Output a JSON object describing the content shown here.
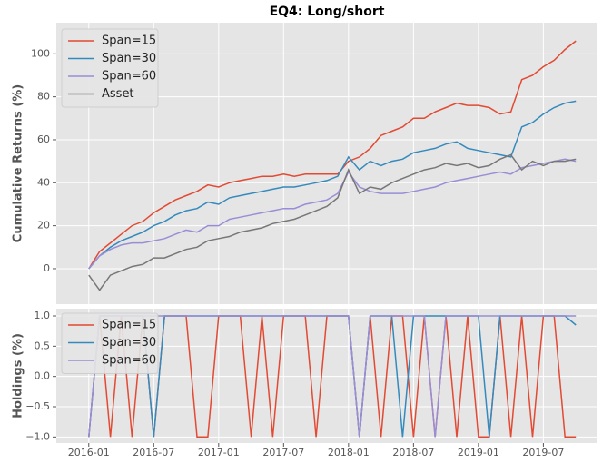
{
  "chart_data": [
    {
      "type": "line",
      "title": "EQ4: Long/short",
      "ylabel": "Cumulative Returns (%)",
      "x": [
        "2016-01",
        "2016-02",
        "2016-03",
        "2016-04",
        "2016-05",
        "2016-06",
        "2016-07",
        "2016-08",
        "2016-09",
        "2016-10",
        "2016-11",
        "2016-12",
        "2017-01",
        "2017-02",
        "2017-03",
        "2017-04",
        "2017-05",
        "2017-06",
        "2017-07",
        "2017-08",
        "2017-09",
        "2017-10",
        "2017-11",
        "2017-12",
        "2018-01",
        "2018-02",
        "2018-03",
        "2018-04",
        "2018-05",
        "2018-06",
        "2018-07",
        "2018-08",
        "2018-09",
        "2018-10",
        "2018-11",
        "2018-12",
        "2019-01",
        "2019-02",
        "2019-03",
        "2019-04",
        "2019-05",
        "2019-06",
        "2019-07",
        "2019-08",
        "2019-09",
        "2019-10"
      ],
      "xlim": [
        "2015-10",
        "2019-12"
      ],
      "ylim": [
        -16.5,
        114.5
      ],
      "yticks": [
        0,
        20,
        40,
        60,
        80,
        100
      ],
      "grid": true,
      "legend": "upper left",
      "series": [
        {
          "name": "Span=15",
          "color": "#E24A33",
          "values": [
            0,
            8,
            12,
            16,
            20,
            22,
            26,
            29,
            32,
            34,
            36,
            39,
            38,
            40,
            41,
            42,
            43,
            43,
            44,
            43,
            44,
            44,
            44,
            44,
            50,
            52,
            56,
            62,
            64,
            66,
            70,
            70,
            73,
            75,
            77,
            76,
            76,
            75,
            72,
            73,
            88,
            90,
            94,
            97,
            102,
            106
          ]
        },
        {
          "name": "Span=30",
          "color": "#348ABD",
          "values": [
            0,
            6,
            10,
            13,
            15,
            17,
            20,
            22,
            25,
            27,
            28,
            31,
            30,
            33,
            34,
            35,
            36,
            37,
            38,
            38,
            39,
            40,
            41,
            43,
            52,
            46,
            50,
            48,
            50,
            51,
            54,
            55,
            56,
            58,
            59,
            56,
            55,
            54,
            53,
            52,
            66,
            68,
            72,
            75,
            77,
            78
          ]
        },
        {
          "name": "Span=60",
          "color": "#988ED5",
          "values": [
            0,
            6,
            9,
            11,
            12,
            12,
            13,
            14,
            16,
            18,
            17,
            20,
            20,
            23,
            24,
            25,
            26,
            27,
            28,
            28,
            30,
            31,
            32,
            35,
            45,
            38,
            36,
            35,
            35,
            35,
            36,
            37,
            38,
            40,
            41,
            42,
            43,
            44,
            45,
            44,
            47,
            48,
            49,
            50,
            51,
            50
          ]
        },
        {
          "name": "Asset",
          "color": "#777777",
          "values": [
            -3,
            -10,
            -3,
            -1,
            1,
            2,
            5,
            5,
            7,
            9,
            10,
            13,
            14,
            15,
            17,
            18,
            19,
            21,
            22,
            23,
            25,
            27,
            29,
            33,
            46,
            35,
            38,
            37,
            40,
            42,
            44,
            46,
            47,
            49,
            48,
            49,
            47,
            48,
            51,
            53,
            46,
            50,
            48,
            50,
            50,
            51
          ]
        }
      ]
    },
    {
      "type": "line",
      "ylabel": "Holdings (%)",
      "x": [
        "2016-01",
        "2016-02",
        "2016-03",
        "2016-04",
        "2016-05",
        "2016-06",
        "2016-07",
        "2016-08",
        "2016-09",
        "2016-10",
        "2016-11",
        "2016-12",
        "2017-01",
        "2017-02",
        "2017-03",
        "2017-04",
        "2017-05",
        "2017-06",
        "2017-07",
        "2017-08",
        "2017-09",
        "2017-10",
        "2017-11",
        "2017-12",
        "2018-01",
        "2018-02",
        "2018-03",
        "2018-04",
        "2018-05",
        "2018-06",
        "2018-07",
        "2018-08",
        "2018-09",
        "2018-10",
        "2018-11",
        "2018-12",
        "2019-01",
        "2019-02",
        "2019-03",
        "2019-04",
        "2019-05",
        "2019-06",
        "2019-07",
        "2019-08",
        "2019-09",
        "2019-10"
      ],
      "xlim": [
        "2015-10",
        "2019-12"
      ],
      "xticks": [
        "2016-01",
        "2016-07",
        "2017-01",
        "2017-07",
        "2018-01",
        "2018-07",
        "2019-01",
        "2019-07"
      ],
      "ylim": [
        -1.1,
        1.12
      ],
      "yticks": [
        {
          "value": -1,
          "label": "−1.0"
        },
        {
          "value": -0.5,
          "label": "−0.5"
        },
        {
          "value": 0,
          "label": "0.0"
        },
        {
          "value": 0.5,
          "label": "0.5"
        },
        {
          "value": 1,
          "label": "1.0"
        }
      ],
      "grid": true,
      "legend": "upper left",
      "series": [
        {
          "name": "Span=15",
          "color": "#E24A33",
          "values": [
            -1,
            1,
            -1,
            1,
            -1,
            1,
            -1,
            1,
            1,
            1,
            -1,
            -1,
            1,
            1,
            1,
            -1,
            1,
            -1,
            1,
            1,
            1,
            -1,
            1,
            1,
            1,
            -1,
            1,
            -1,
            1,
            1,
            -1,
            1,
            -1,
            1,
            -1,
            1,
            -1,
            -1,
            1,
            -1,
            1,
            -1,
            1,
            1,
            -1,
            -1
          ]
        },
        {
          "name": "Span=30",
          "color": "#348ABD",
          "values": [
            -1,
            1,
            1,
            1,
            1,
            1,
            -1,
            1,
            1,
            1,
            1,
            1,
            1,
            1,
            1,
            1,
            1,
            1,
            1,
            1,
            1,
            1,
            1,
            1,
            1,
            -1,
            1,
            1,
            1,
            -1,
            1,
            1,
            1,
            1,
            1,
            1,
            1,
            -1,
            1,
            1,
            1,
            1,
            1,
            1,
            1,
            0.85
          ]
        },
        {
          "name": "Span=60",
          "color": "#988ED5",
          "values": [
            -1,
            1,
            1,
            1,
            1,
            1,
            1,
            1,
            1,
            1,
            1,
            1,
            1,
            1,
            1,
            1,
            1,
            1,
            1,
            1,
            1,
            1,
            1,
            1,
            1,
            -1,
            1,
            1,
            1,
            1,
            1,
            1,
            -1,
            1,
            1,
            1,
            1,
            1,
            1,
            1,
            1,
            1,
            1,
            1,
            1,
            1
          ]
        }
      ]
    }
  ]
}
